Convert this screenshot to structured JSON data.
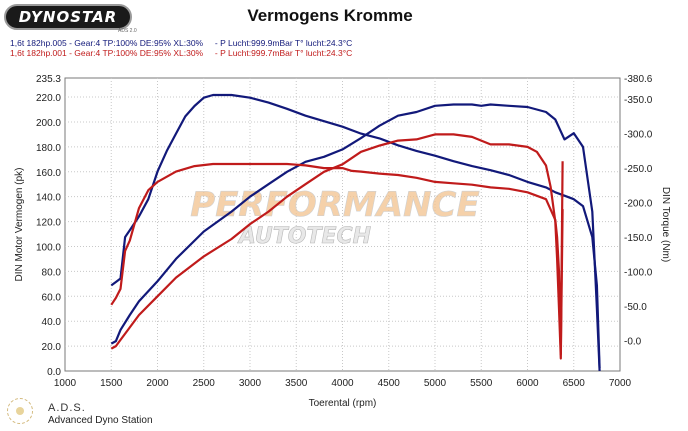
{
  "brand": {
    "logo_text": "DYNOSTAR",
    "logo_sub": "ADS 2.0",
    "watermark_line1": "PERFORMANCE",
    "watermark_line2": "AUTOTECH"
  },
  "footer": {
    "line1": "A.D.S.",
    "line2": "Advanced Dyno Station"
  },
  "runs": [
    {
      "text": "1,6t 182hp.005 - Gear:4 TP:100% DE:95% XL:30%     - P Lucht:999.9mBar T° lucht:24.3°C",
      "color": "#12197a"
    },
    {
      "text": "1,6t 182hp.001 - Gear:4 TP:100% DE:95% XL:30%     - P Lucht:999.7mBar T° lucht:24.3°C",
      "color": "#c01b1b"
    }
  ],
  "chart_data": {
    "type": "line",
    "title": "Vermogens Kromme",
    "xlabel": "Toerental (rpm)",
    "ylabel_left": "DIN Motor Vermogen (pk)",
    "ylabel_right": "DIN Torque (Nm)",
    "xlim": [
      1000,
      7000
    ],
    "ylim_left": [
      0,
      235.3
    ],
    "ylim_right": [
      -44.0,
      380.6
    ],
    "x_ticks": [
      "1000",
      "1500",
      "2000",
      "2500",
      "3000",
      "3500",
      "4000",
      "4500",
      "5000",
      "5500",
      "6000",
      "6500",
      "7000"
    ],
    "y_ticks_left": [
      "0.0",
      "20.0",
      "40.0",
      "60.0",
      "80.0",
      "100.0",
      "120.0",
      "140.0",
      "160.0",
      "180.0",
      "200.0",
      "220.0",
      "235.3"
    ],
    "y_ticks_right": [
      "-0.0",
      "-50.0",
      "-100.0",
      "-150.0",
      "-200.0",
      "-250.0",
      "-300.0",
      "-350.0",
      "-380.6"
    ],
    "grid": true,
    "colors": {
      "run_005": "#12197a",
      "run_001": "#c01b1b"
    },
    "series": [
      {
        "name": "1,6t 182hp.005",
        "axis": "right",
        "color": "#12197a",
        "x": [
          1500,
          1550,
          1600,
          1650,
          1700,
          1800,
          1900,
          2000,
          2100,
          2200,
          2300,
          2400,
          2500,
          2600,
          2800,
          3000,
          3200,
          3400,
          3600,
          3800,
          4000,
          4200,
          4400,
          4600,
          4800,
          5000,
          5200,
          5400,
          5600,
          5800,
          6000,
          6200,
          6300,
          6400,
          6500,
          6600,
          6700,
          6750,
          6780
        ],
        "y": [
          80,
          85,
          90,
          150,
          160,
          180,
          205,
          245,
          275,
          300,
          325,
          340,
          352,
          356,
          356,
          352,
          345,
          336,
          326,
          318,
          310,
          300,
          293,
          283,
          275,
          268,
          260,
          253,
          247,
          240,
          230,
          222,
          215,
          210,
          205,
          195,
          150,
          80,
          -40
        ]
      },
      {
        "name": "1,6t 182hp.005",
        "axis": "left",
        "color": "#12197a",
        "x": [
          1500,
          1550,
          1600,
          1700,
          1800,
          2000,
          2200,
          2500,
          2800,
          3000,
          3200,
          3400,
          3600,
          3800,
          4000,
          4200,
          4400,
          4600,
          4800,
          5000,
          5200,
          5400,
          5500,
          5600,
          5800,
          6000,
          6200,
          6300,
          6400,
          6500,
          6600,
          6700,
          6750,
          6780
        ],
        "y": [
          22,
          24,
          33,
          45,
          56,
          72,
          90,
          112,
          128,
          140,
          150,
          160,
          168,
          172,
          178,
          187,
          197,
          205,
          208,
          213,
          214,
          214,
          213,
          214,
          213,
          212,
          208,
          202,
          186,
          191,
          180,
          128,
          50,
          0
        ]
      },
      {
        "name": "1,6t 182hp.001",
        "axis": "right",
        "color": "#c01b1b",
        "x": [
          1500,
          1550,
          1600,
          1650,
          1700,
          1800,
          1900,
          2000,
          2200,
          2400,
          2600,
          2800,
          3000,
          3200,
          3400,
          3500,
          3600,
          3800,
          4000,
          4100,
          4200,
          4400,
          4600,
          4800,
          5000,
          5200,
          5400,
          5600,
          5800,
          6000,
          6200,
          6300,
          6320,
          6340,
          6360,
          6380
        ],
        "y": [
          52,
          62,
          75,
          130,
          145,
          192,
          218,
          230,
          245,
          253,
          256,
          256,
          256,
          256,
          256,
          255,
          254,
          250,
          250,
          246,
          245,
          242,
          240,
          236,
          230,
          228,
          226,
          222,
          220,
          215,
          205,
          175,
          150,
          100,
          -20,
          260
        ]
      },
      {
        "name": "1,6t 182hp.001",
        "axis": "left",
        "color": "#c01b1b",
        "x": [
          1500,
          1550,
          1600,
          1700,
          1800,
          2000,
          2200,
          2500,
          2800,
          3000,
          3200,
          3400,
          3600,
          3800,
          4000,
          4200,
          4400,
          4600,
          4800,
          5000,
          5200,
          5400,
          5600,
          5800,
          6000,
          6100,
          6200,
          6250,
          6300,
          6320,
          6340,
          6360,
          6380
        ],
        "y": [
          18,
          20,
          25,
          35,
          45,
          60,
          75,
          92,
          106,
          118,
          128,
          140,
          150,
          160,
          166,
          176,
          181,
          185,
          186,
          190,
          190,
          188,
          182,
          182,
          180,
          176,
          165,
          148,
          120,
          90,
          50,
          10,
          130
        ]
      }
    ]
  }
}
